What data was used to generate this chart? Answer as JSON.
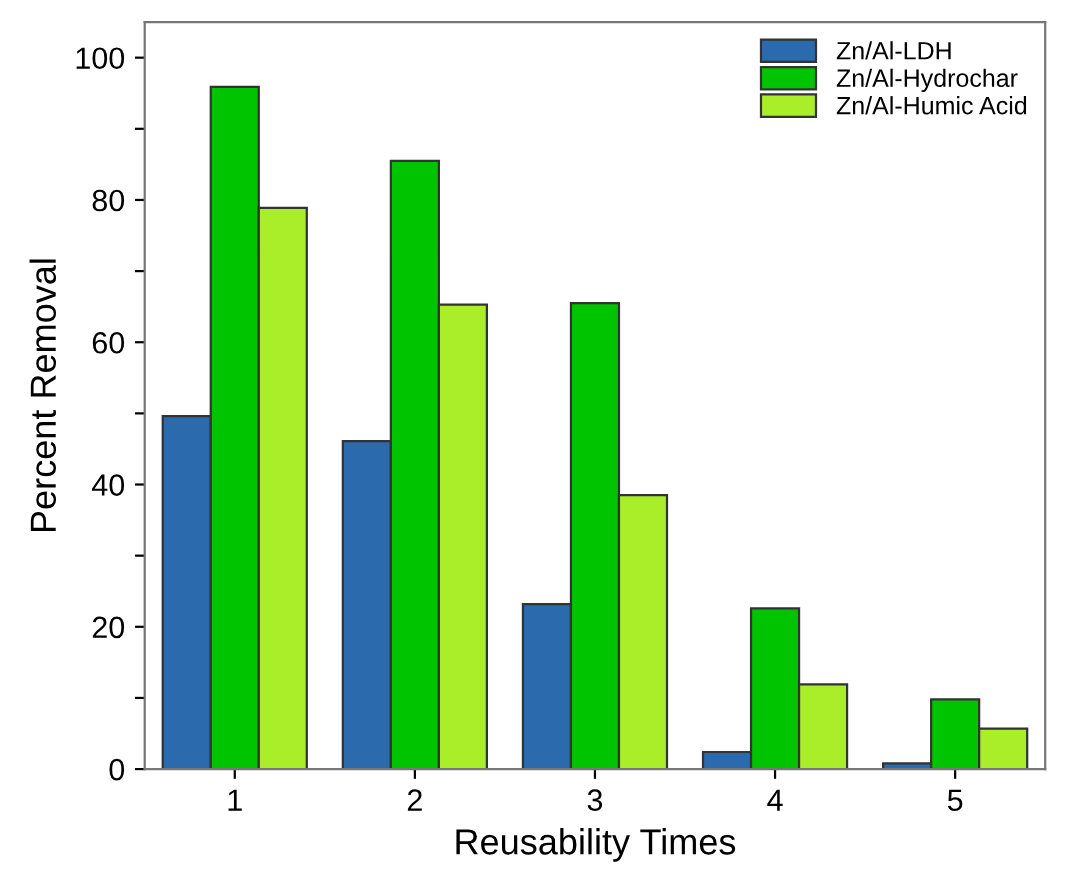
{
  "chart_data": {
    "type": "bar",
    "xlabel": "Reusability Times",
    "ylabel": "Percent Removal",
    "categories": [
      "1",
      "2",
      "3",
      "4",
      "5"
    ],
    "series": [
      {
        "name": "Zn/Al-LDH",
        "color": "#2b6aad",
        "values": [
          49.6,
          46.1,
          23.2,
          2.4,
          0.8
        ]
      },
      {
        "name": "Zn/Al-Hydrochar",
        "color": "#00c400",
        "values": [
          95.9,
          85.5,
          65.5,
          22.6,
          9.8
        ]
      },
      {
        "name": "Zn/Al-Humic Acid",
        "color": "#aaee2a",
        "values": [
          78.9,
          65.3,
          38.5,
          11.9,
          5.7
        ]
      }
    ],
    "ylim": [
      0,
      105
    ],
    "yticks": [
      0,
      {
        "value": 10,
        "label": null
      },
      20,
      {
        "value": 30,
        "label": null
      },
      40,
      {
        "value": 50,
        "label": null
      },
      60,
      {
        "value": 70,
        "label": null
      },
      80,
      {
        "value": 90,
        "label": null
      },
      100
    ],
    "legend": "top right",
    "grid": false
  }
}
